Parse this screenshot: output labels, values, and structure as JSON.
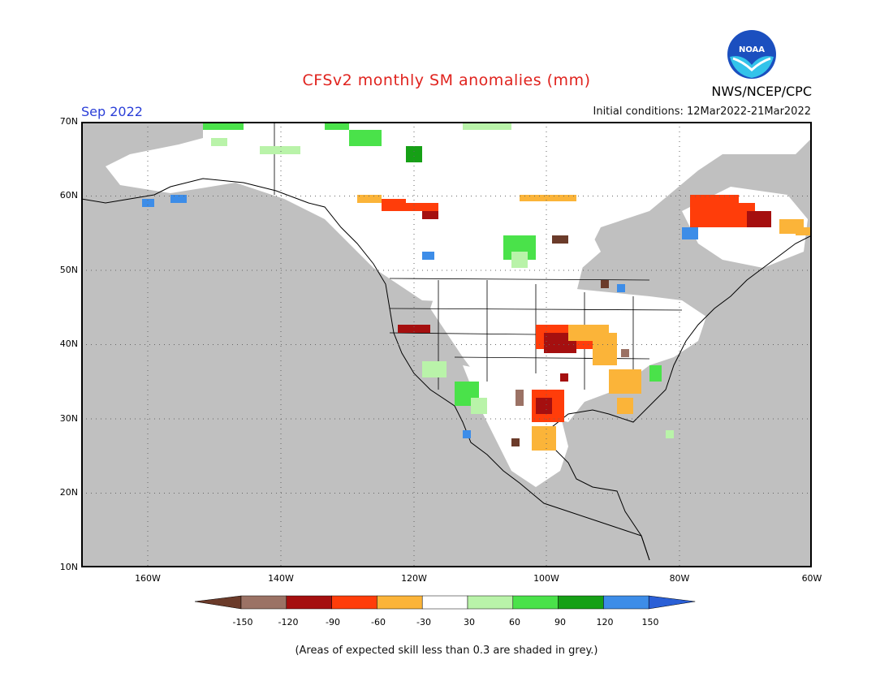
{
  "header": {
    "title": "CFSv2 monthly SM anomalies (mm)",
    "month": "Sep 2022",
    "agency": "NWS/NCEP/CPC",
    "initial_conditions": "Initial conditions: 12Mar2022-21Mar2022",
    "logo_text": "NOAA"
  },
  "map": {
    "lat_labels": [
      "70N",
      "60N",
      "50N",
      "40N",
      "30N",
      "20N",
      "10N"
    ],
    "lon_labels": [
      "160W",
      "140W",
      "120W",
      "100W",
      "80W",
      "60W"
    ]
  },
  "colorbar": {
    "labels": [
      "-150",
      "-120",
      "-90",
      "-60",
      "-30",
      "30",
      "60",
      "90",
      "120",
      "150"
    ],
    "colors": [
      "#6b3b2a",
      "#9b7265",
      "#a50f0f",
      "#ff3d0a",
      "#fbb439",
      "#ffffff",
      "#b9f3a9",
      "#4ae24a",
      "#16a016",
      "#3d8de8",
      "#2a5fd6"
    ]
  },
  "footer": {
    "note": "(Areas of expected skill less than 0.3 are shaded in grey.)"
  },
  "colors": {
    "grey_mask": "#c0c0c0",
    "land": "#ffffff",
    "title_red": "#e0231e",
    "month_blue": "#2b3fd8"
  }
}
